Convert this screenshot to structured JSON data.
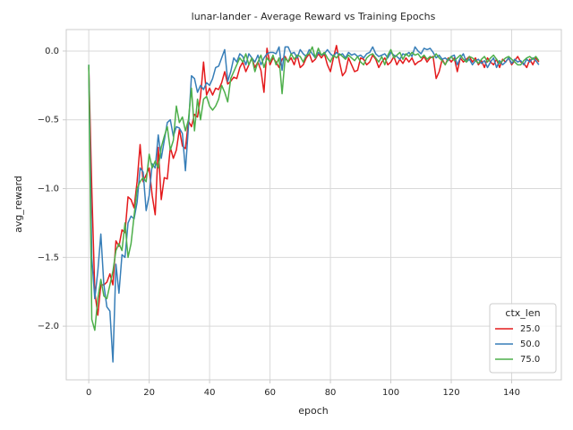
{
  "chart_data": {
    "type": "line",
    "title": "lunar-lander - Average Reward vs Training Epochs",
    "x_label": "epoch",
    "y_label": "avg_reward",
    "legend_title": "ctx_len",
    "legend_loc": "lower right",
    "grid": true,
    "xlim": [
      -7.45,
      156.45
    ],
    "ylim": [
      -2.39,
      0.156
    ],
    "xticks": [
      0,
      20,
      40,
      60,
      80,
      100,
      120,
      140
    ],
    "yticks": [
      {
        "value": -2.0,
        "label": "−2.0"
      },
      {
        "value": -1.5,
        "label": "−1.5"
      },
      {
        "value": -1.0,
        "label": "−1.0"
      },
      {
        "value": -0.5,
        "label": "−0.5"
      },
      {
        "value": 0.0,
        "label": "0.0"
      }
    ],
    "x": [
      0,
      1,
      2,
      3,
      4,
      5,
      6,
      7,
      8,
      9,
      10,
      11,
      12,
      13,
      14,
      15,
      16,
      17,
      18,
      19,
      20,
      21,
      22,
      23,
      24,
      25,
      26,
      27,
      28,
      29,
      30,
      31,
      32,
      33,
      34,
      35,
      36,
      37,
      38,
      39,
      40,
      41,
      42,
      43,
      44,
      45,
      46,
      47,
      48,
      49,
      50,
      51,
      52,
      53,
      54,
      55,
      56,
      57,
      58,
      59,
      60,
      61,
      62,
      63,
      64,
      65,
      66,
      67,
      68,
      69,
      70,
      71,
      72,
      73,
      74,
      75,
      76,
      77,
      78,
      79,
      80,
      81,
      82,
      83,
      84,
      85,
      86,
      87,
      88,
      89,
      90,
      91,
      92,
      93,
      94,
      95,
      96,
      97,
      98,
      99,
      100,
      101,
      102,
      103,
      104,
      105,
      106,
      107,
      108,
      109,
      110,
      111,
      112,
      113,
      114,
      115,
      116,
      117,
      118,
      119,
      120,
      121,
      122,
      123,
      124,
      125,
      126,
      127,
      128,
      129,
      130,
      131,
      132,
      133,
      134,
      135,
      136,
      137,
      138,
      139,
      140,
      141,
      142,
      143,
      144,
      145,
      146,
      147,
      148,
      149
    ],
    "series": [
      {
        "name": "25.0",
        "color": "#e41a1c",
        "values": [
          -0.12,
          -1.0,
          -1.75,
          -1.92,
          -1.7,
          -1.7,
          -1.68,
          -1.62,
          -1.7,
          -1.38,
          -1.42,
          -1.3,
          -1.32,
          -1.06,
          -1.08,
          -1.14,
          -0.95,
          -0.68,
          -0.95,
          -0.9,
          -0.85,
          -1.05,
          -1.19,
          -0.7,
          -1.08,
          -0.92,
          -0.93,
          -0.7,
          -0.78,
          -0.72,
          -0.57,
          -0.69,
          -0.71,
          -0.51,
          -0.55,
          -0.46,
          -0.48,
          -0.33,
          -0.08,
          -0.32,
          -0.27,
          -0.32,
          -0.27,
          -0.28,
          -0.23,
          -0.15,
          -0.24,
          -0.22,
          -0.19,
          -0.2,
          -0.12,
          -0.08,
          -0.15,
          -0.1,
          -0.05,
          -0.12,
          -0.08,
          -0.14,
          -0.3,
          0.02,
          -0.1,
          -0.05,
          -0.08,
          -0.12,
          -0.06,
          -0.04,
          -0.08,
          -0.05,
          -0.1,
          -0.03,
          -0.12,
          -0.1,
          -0.05,
          -0.02,
          -0.08,
          -0.06,
          -0.02,
          -0.05,
          -0.02,
          -0.1,
          -0.15,
          -0.05,
          0.04,
          -0.08,
          -0.18,
          -0.15,
          -0.05,
          -0.1,
          -0.15,
          -0.14,
          -0.05,
          -0.06,
          -0.1,
          -0.08,
          -0.03,
          -0.06,
          -0.12,
          -0.08,
          -0.05,
          -0.1,
          -0.08,
          -0.04,
          -0.1,
          -0.06,
          -0.09,
          -0.05,
          -0.08,
          -0.05,
          -0.1,
          -0.08,
          -0.07,
          -0.04,
          -0.08,
          -0.05,
          -0.04,
          -0.2,
          -0.15,
          -0.06,
          -0.1,
          -0.05,
          -0.08,
          -0.05,
          -0.15,
          -0.05,
          -0.08,
          -0.06,
          -0.04,
          -0.08,
          -0.05,
          -0.1,
          -0.07,
          -0.12,
          -0.05,
          -0.08,
          -0.1,
          -0.06,
          -0.12,
          -0.06,
          -0.08,
          -0.05,
          -0.1,
          -0.07,
          -0.04,
          -0.08,
          -0.09,
          -0.12,
          -0.06,
          -0.1,
          -0.05,
          -0.08
        ]
      },
      {
        "name": "50.0",
        "color": "#377eb8",
        "values": [
          -0.1,
          -1.5,
          -1.8,
          -1.6,
          -1.33,
          -1.7,
          -1.86,
          -1.89,
          -2.26,
          -1.55,
          -1.76,
          -1.48,
          -1.5,
          -1.25,
          -1.2,
          -1.22,
          -1.1,
          -0.85,
          -0.88,
          -1.16,
          -1.05,
          -0.82,
          -0.85,
          -0.61,
          -0.78,
          -0.65,
          -0.52,
          -0.5,
          -0.62,
          -0.55,
          -0.56,
          -0.6,
          -0.87,
          -0.55,
          -0.18,
          -0.2,
          -0.3,
          -0.25,
          -0.28,
          -0.23,
          -0.25,
          -0.2,
          -0.12,
          -0.11,
          -0.05,
          0.01,
          -0.22,
          -0.15,
          -0.05,
          -0.08,
          -0.02,
          -0.04,
          -0.1,
          -0.02,
          -0.05,
          -0.08,
          -0.03,
          -0.1,
          -0.05,
          -0.02,
          -0.01,
          -0.01,
          -0.02,
          0.03,
          -0.14,
          0.03,
          0.03,
          -0.02,
          -0.01,
          -0.05,
          0.01,
          -0.02,
          -0.04,
          0.01,
          -0.02,
          -0.05,
          -0.01,
          -0.03,
          -0.02,
          0.01,
          -0.02,
          -0.04,
          -0.01,
          -0.03,
          -0.02,
          -0.05,
          -0.01,
          -0.03,
          -0.02,
          -0.04,
          -0.03,
          -0.05,
          -0.02,
          -0.01,
          0.03,
          -0.02,
          -0.04,
          -0.03,
          -0.02,
          -0.05,
          -0.01,
          -0.03,
          -0.04,
          -0.06,
          -0.02,
          -0.03,
          -0.01,
          -0.04,
          0.03,
          0.0,
          -0.02,
          0.02,
          0.01,
          0.02,
          -0.01,
          -0.05,
          -0.03,
          -0.06,
          -0.05,
          -0.07,
          -0.04,
          -0.03,
          -0.1,
          -0.05,
          -0.02,
          -0.08,
          -0.06,
          -0.1,
          -0.07,
          -0.06,
          -0.09,
          -0.07,
          -0.12,
          -0.08,
          -0.05,
          -0.12,
          -0.07,
          -0.1,
          -0.08,
          -0.05,
          -0.09,
          -0.06,
          -0.08,
          -0.07,
          -0.1,
          -0.06,
          -0.08,
          -0.05,
          -0.07,
          -0.1
        ]
      },
      {
        "name": "75.0",
        "color": "#4daf4a",
        "values": [
          -0.1,
          -1.95,
          -2.03,
          -1.8,
          -1.66,
          -1.78,
          -1.8,
          -1.7,
          -1.6,
          -1.45,
          -1.4,
          -1.45,
          -1.25,
          -1.5,
          -1.4,
          -1.2,
          -1.0,
          -0.95,
          -0.92,
          -0.95,
          -0.75,
          -0.85,
          -0.8,
          -0.85,
          -0.7,
          -0.62,
          -0.55,
          -0.72,
          -0.65,
          -0.4,
          -0.52,
          -0.48,
          -0.58,
          -0.5,
          -0.27,
          -0.58,
          -0.35,
          -0.5,
          -0.35,
          -0.33,
          -0.4,
          -0.43,
          -0.4,
          -0.35,
          -0.25,
          -0.3,
          -0.37,
          -0.2,
          -0.15,
          -0.1,
          -0.05,
          -0.08,
          -0.02,
          -0.1,
          -0.05,
          -0.15,
          -0.08,
          -0.03,
          -0.12,
          -0.05,
          -0.08,
          -0.03,
          -0.1,
          -0.05,
          -0.31,
          -0.05,
          -0.08,
          -0.02,
          -0.06,
          -0.03,
          -0.04,
          -0.08,
          -0.03,
          -0.02,
          0.03,
          -0.05,
          0.02,
          -0.03,
          -0.01,
          -0.05,
          -0.08,
          -0.03,
          -0.05,
          -0.02,
          -0.04,
          -0.06,
          -0.03,
          -0.05,
          -0.07,
          -0.04,
          -0.08,
          -0.1,
          -0.05,
          -0.03,
          -0.02,
          -0.05,
          -0.08,
          -0.04,
          -0.1,
          -0.03,
          0.01,
          -0.05,
          -0.03,
          -0.01,
          -0.06,
          -0.02,
          -0.04,
          -0.01,
          -0.03,
          -0.02,
          -0.05,
          -0.03,
          -0.06,
          -0.04,
          -0.05,
          -0.02,
          -0.05,
          -0.07,
          -0.1,
          -0.06,
          -0.04,
          -0.07,
          -0.05,
          -0.03,
          -0.06,
          -0.08,
          -0.04,
          -0.05,
          -0.07,
          -0.09,
          -0.06,
          -0.04,
          -0.08,
          -0.05,
          -0.03,
          -0.06,
          -0.09,
          -0.07,
          -0.05,
          -0.04,
          -0.06,
          -0.08,
          -0.1,
          -0.1,
          -0.07,
          -0.05,
          -0.04,
          -0.06,
          -0.04,
          -0.07
        ]
      }
    ]
  }
}
